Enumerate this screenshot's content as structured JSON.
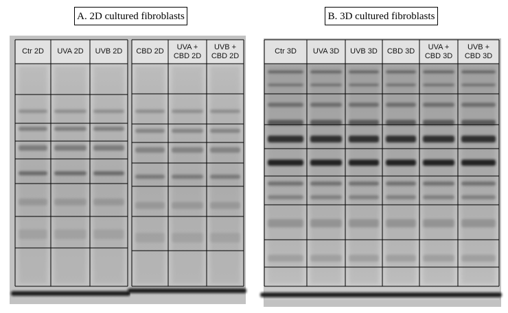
{
  "panels": [
    {
      "title": "A. 2D cultured fibroblasts",
      "gels": [
        {
          "lanes": [
            "Ctr 2D",
            "UVA 2D",
            "UVB 2D"
          ]
        },
        {
          "lanes": [
            "CBD 2D",
            "UVA + CBD 2D",
            "UVB + CBD 2D"
          ]
        }
      ]
    },
    {
      "title": "B. 3D cultured fibroblasts",
      "gels": [
        {
          "lanes": [
            "Ctr 3D",
            "UVA 3D",
            "UVB 3D",
            "CBD 3D",
            "UVA + CBD 3D",
            "UVB + CBD 3D"
          ]
        }
      ]
    }
  ]
}
